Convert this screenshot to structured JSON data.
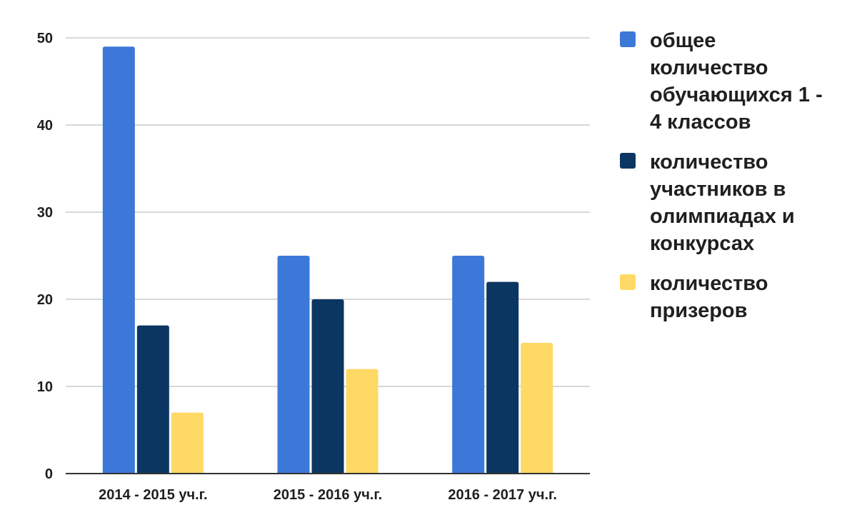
{
  "chart_data": {
    "type": "bar",
    "categories": [
      "2014 - 2015 уч.г.",
      "2015 - 2016 уч.г.",
      "2016 - 2017 уч.г."
    ],
    "series": [
      {
        "name": "общее количество обучающихся 1 - 4 классов",
        "values": [
          49,
          25,
          25
        ],
        "color": "#3c78d8"
      },
      {
        "name": "количество участников в олимпиадах и конкурсах",
        "values": [
          17,
          20,
          22
        ],
        "color": "#0b3661"
      },
      {
        "name": "количество призеров",
        "values": [
          7,
          12,
          15
        ],
        "color": "#ffd966"
      }
    ],
    "yticks": [
      "0",
      "10",
      "20",
      "30",
      "40",
      "50"
    ],
    "ylim": [
      0,
      50
    ],
    "grid": true,
    "legend_position": "right",
    "xlabel": "",
    "ylabel": ""
  }
}
